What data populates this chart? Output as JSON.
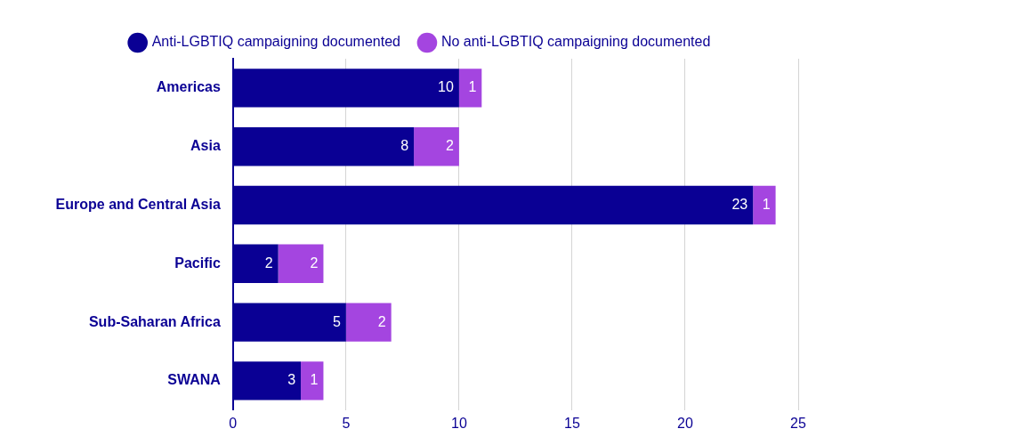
{
  "chart_data": {
    "type": "bar",
    "orientation": "horizontal",
    "stacked": true,
    "categories": [
      "Americas",
      "Asia",
      "Europe and Central Asia",
      "Pacific",
      "Sub-Saharan Africa",
      "SWANA"
    ],
    "series": [
      {
        "name": "Anti-LGBTIQ campaigning documented",
        "color": "#0a0094",
        "values": [
          10,
          8,
          23,
          2,
          5,
          3
        ]
      },
      {
        "name": "No anti-LGBTIQ campaigning documented",
        "color": "#a445e0",
        "values": [
          1,
          2,
          1,
          2,
          2,
          1
        ]
      }
    ],
    "xlim": [
      0,
      25
    ],
    "xticks": [
      0,
      5,
      10,
      15,
      20,
      25
    ],
    "grid": "x",
    "legend": "top",
    "data_labels": true
  }
}
